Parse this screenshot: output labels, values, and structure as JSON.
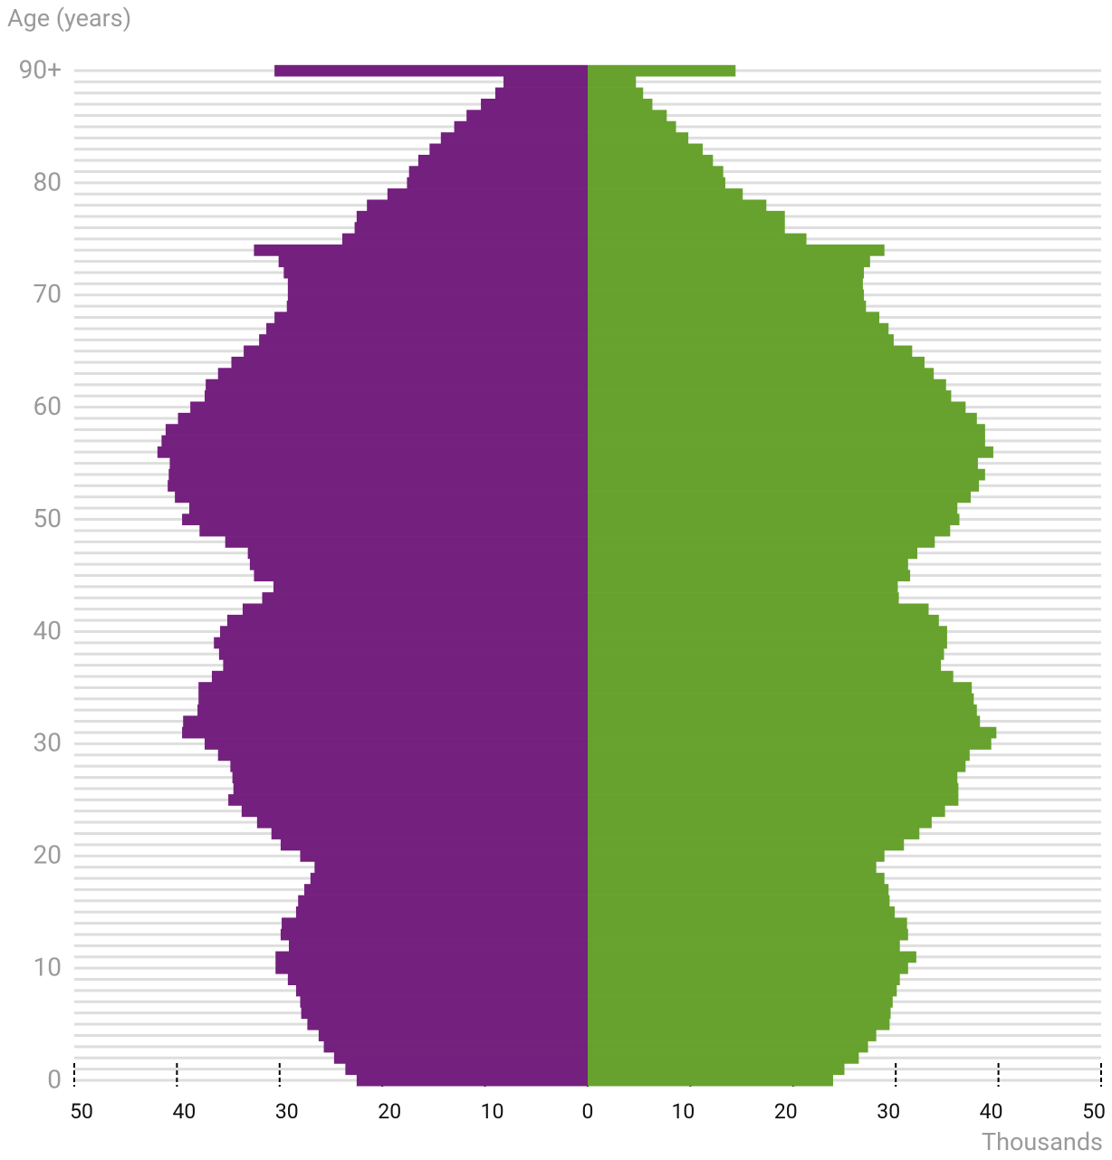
{
  "chart_data": {
    "type": "pyramid",
    "title": "Age (years)",
    "x_label": "Thousands",
    "categories": [
      "0",
      null,
      null,
      null,
      null,
      null,
      null,
      null,
      null,
      null,
      "10",
      null,
      null,
      null,
      null,
      null,
      null,
      null,
      null,
      null,
      "20",
      null,
      null,
      null,
      null,
      null,
      null,
      null,
      null,
      null,
      "30",
      null,
      null,
      null,
      null,
      null,
      null,
      null,
      null,
      null,
      "40",
      null,
      null,
      null,
      null,
      null,
      null,
      null,
      null,
      null,
      "50",
      null,
      null,
      null,
      null,
      null,
      null,
      null,
      null,
      null,
      "60",
      null,
      null,
      null,
      null,
      null,
      null,
      null,
      null,
      null,
      "70",
      null,
      null,
      null,
      null,
      null,
      null,
      null,
      null,
      null,
      "80",
      null,
      null,
      null,
      null,
      null,
      null,
      null,
      null,
      null,
      "90+"
    ],
    "series": [
      {
        "color": "#74207e",
        "values": [
          -22.5,
          -23.6,
          -24.7,
          -25.7,
          -26.2,
          -27.3,
          -27.9,
          -28.0,
          -28.4,
          -29.2,
          -30.4,
          -30.4,
          -29.1,
          -29.9,
          -29.8,
          -28.4,
          -28.2,
          -27.6,
          -27.0,
          -26.6,
          -28.0,
          -29.9,
          -30.8,
          -32.2,
          -33.7,
          -35.0,
          -34.5,
          -34.6,
          -34.8,
          -36.0,
          -37.3,
          -39.5,
          -39.4,
          -38.0,
          -37.9,
          -37.9,
          -36.6,
          -35.5,
          -35.9,
          -36.4,
          -35.8,
          -35.1,
          -33.6,
          -31.7,
          -30.6,
          -32.5,
          -32.9,
          -33.1,
          -35.3,
          -37.8,
          -39.5,
          -38.8,
          -40.2,
          -40.9,
          -40.8,
          -40.7,
          -41.9,
          -41.5,
          -41.1,
          -39.9,
          -38.7,
          -37.3,
          -37.2,
          -36.0,
          -34.7,
          -33.5,
          -32.0,
          -31.3,
          -30.5,
          -29.3,
          -29.2,
          -29.2,
          -29.6,
          -30.1,
          -32.5,
          -23.9,
          -22.7,
          -22.5,
          -21.5,
          -19.5,
          -17.6,
          -17.4,
          -16.5,
          -15.4,
          -14.3,
          -13.0,
          -11.8,
          -10.4,
          -9.0,
          -8.2,
          -30.5
        ]
      },
      {
        "color": "#67a22f",
        "values": [
          23.9,
          25.0,
          26.4,
          27.3,
          28.1,
          29.4,
          29.5,
          29.7,
          30.1,
          30.4,
          31.2,
          32.0,
          30.4,
          31.2,
          31.1,
          29.9,
          29.4,
          29.3,
          28.9,
          28.1,
          28.9,
          30.8,
          32.3,
          33.5,
          34.8,
          36.1,
          36.1,
          36.0,
          36.8,
          37.2,
          39.3,
          39.8,
          38.2,
          37.9,
          37.6,
          37.4,
          35.6,
          34.4,
          34.7,
          35.0,
          35.0,
          34.2,
          33.2,
          30.3,
          30.2,
          31.4,
          31.2,
          32.1,
          33.8,
          35.3,
          36.2,
          36.0,
          37.3,
          38.1,
          38.7,
          38.0,
          39.5,
          38.7,
          38.7,
          37.9,
          36.8,
          35.4,
          34.9,
          33.7,
          32.8,
          31.6,
          29.8,
          29.3,
          28.4,
          27.1,
          26.9,
          26.8,
          26.9,
          27.5,
          28.9,
          21.3,
          19.2,
          19.2,
          17.4,
          15.1,
          13.4,
          13.2,
          12.2,
          11.2,
          9.8,
          8.6,
          7.7,
          6.3,
          5.4,
          4.7,
          14.4
        ]
      }
    ],
    "xlim": [
      -50,
      50
    ],
    "xticks": [
      {
        "value": -50,
        "label": "50"
      },
      {
        "value": -40,
        "label": "40"
      },
      {
        "value": -30,
        "label": "30"
      },
      {
        "value": -20,
        "label": "20"
      },
      {
        "value": -10,
        "label": "10"
      },
      0,
      10,
      20,
      30,
      40,
      50
    ]
  }
}
